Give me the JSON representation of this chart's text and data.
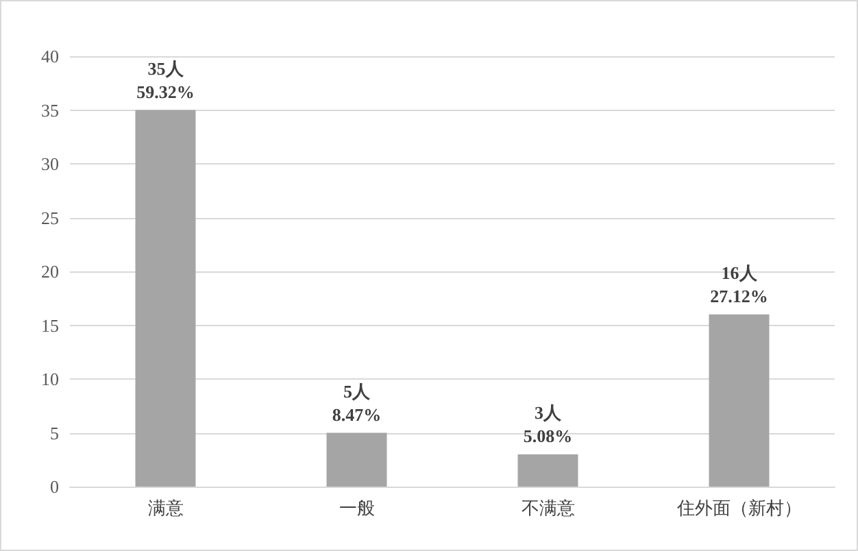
{
  "chart_data": {
    "type": "bar",
    "categories": [
      "满意",
      "一般",
      "不满意",
      "住外面（新村）"
    ],
    "values": [
      35,
      5,
      3,
      16
    ],
    "value_labels": [
      "35人\n59.32%",
      "5人\n8.47%",
      "3人\n5.08%",
      "16人\n27.12%"
    ],
    "color": "#a5a5a5",
    "ylim": [
      0,
      40
    ],
    "yticks": [
      0,
      5,
      10,
      15,
      20,
      25,
      30,
      35,
      40
    ],
    "grid": "y"
  }
}
